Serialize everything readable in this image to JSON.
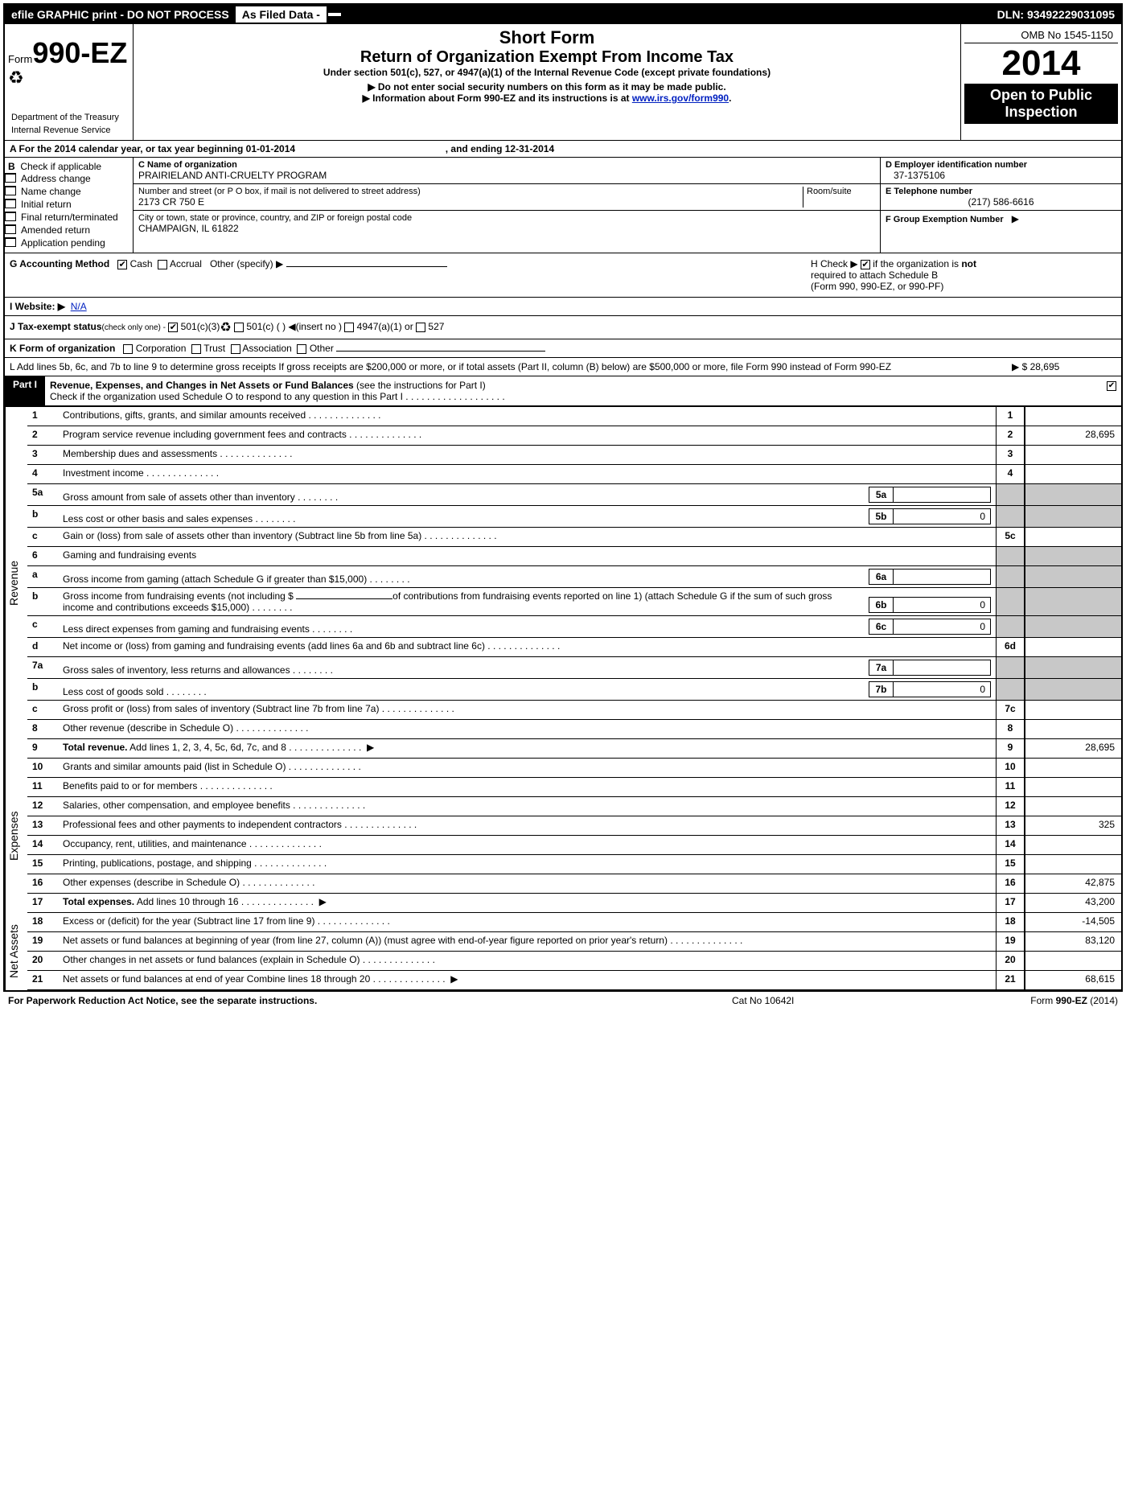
{
  "topbar": {
    "efile": "efile GRAPHIC print - DO NOT PROCESS",
    "asfiled": "As Filed Data -",
    "dln": "DLN: 93492229031095"
  },
  "header": {
    "formword": "Form",
    "formnum": "990-EZ",
    "dept1": "Department of the Treasury",
    "dept2": "Internal Revenue Service",
    "shortform": "Short Form",
    "retorg": "Return of Organization Exempt From Income Tax",
    "under": "Under section 501(c), 527, or 4947(a)(1) of the Internal Revenue Code (except private foundations)",
    "note1": "▶ Do not enter social security numbers on this form as it may be made public.",
    "note2a": "▶ Information about Form 990-EZ and its instructions is at ",
    "note2b": "www.irs.gov/form990",
    "note2c": ".",
    "omb": "OMB No  1545-1150",
    "year": "2014",
    "open1": "Open to Public",
    "open2": "Inspection"
  },
  "rowA": {
    "a": "A  For the 2014 calendar year, or tax year beginning 01-01-2014",
    "b": ", and ending 12-31-2014"
  },
  "B": {
    "label": "B",
    "check": "Check if applicable",
    "opts": [
      "Address change",
      "Name change",
      "Initial return",
      "Final return/terminated",
      "Amended return",
      "Application pending"
    ]
  },
  "C": {
    "namelabel": "C Name of organization",
    "name": "PRAIRIELAND ANTI-CRUELTY PROGRAM",
    "addrlabel": "Number and street (or P  O  box, if mail is not delivered to street address)",
    "roomlabel": "Room/suite",
    "addr": "2173 CR 750 E",
    "citylabel": "City or town, state or province, country, and ZIP or foreign postal code",
    "city": "CHAMPAIGN, IL  61822"
  },
  "D": {
    "label": "D Employer identification number",
    "val": "37-1375106"
  },
  "E": {
    "label": "E Telephone number",
    "val": "(217) 586-6616"
  },
  "F": {
    "label": "F Group Exemption Number",
    "arrow": "▶"
  },
  "G": {
    "label": "G Accounting Method",
    "cash": "Cash",
    "accr": "Accrual",
    "other": "Other (specify) ▶"
  },
  "H": {
    "text1": "H   Check ▶",
    "text2": "if the organization is ",
    "not": "not",
    "text3": "required to attach Schedule B",
    "text4": "(Form 990, 990-EZ, or 990-PF)"
  },
  "I": {
    "label": "I Website: ▶",
    "val": "N/A"
  },
  "J": {
    "label": "J Tax-exempt status",
    "sub": "(check only one) -",
    "a": "501(c)(3)",
    "b": "501(c) (   ) ◀(insert no )",
    "c": "4947(a)(1) or",
    "d": "527"
  },
  "K": {
    "label": "K Form of organization",
    "a": "Corporation",
    "b": "Trust",
    "c": "Association",
    "d": "Other"
  },
  "L": {
    "text": "L Add lines 5b, 6c, and 7b to line 9 to determine gross receipts  If gross receipts are $200,000 or more, or if total assets (Part II, column (B) below) are $500,000 or more, file Form 990 instead of Form 990-EZ",
    "arrow": "▶",
    "val": "$ 28,695"
  },
  "part1": {
    "tag": "Part I",
    "title": "Revenue, Expenses, and Changes in Net Assets or Fund Balances",
    "sub": "(see the instructions for Part I)",
    "check": "Check if the organization used Schedule O to respond to any question in this Part I"
  },
  "sections": {
    "rev": "Revenue",
    "exp": "Expenses",
    "net": "Net Assets"
  },
  "lines": {
    "1": {
      "n": "1",
      "d": "Contributions, gifts, grants, and similar amounts received",
      "b": "1",
      "v": ""
    },
    "2": {
      "n": "2",
      "d": "Program service revenue including government fees and contracts",
      "b": "2",
      "v": "28,695"
    },
    "3": {
      "n": "3",
      "d": "Membership dues and assessments",
      "b": "3",
      "v": ""
    },
    "4": {
      "n": "4",
      "d": "Investment income",
      "b": "4",
      "v": ""
    },
    "5a": {
      "n": "5a",
      "d": "Gross amount from sale of assets other than inventory",
      "ib": "5a",
      "iv": ""
    },
    "5b": {
      "n": "b",
      "d": "Less  cost or other basis and sales expenses",
      "ib": "5b",
      "iv": "0"
    },
    "5c": {
      "n": "c",
      "d": "Gain or (loss) from sale of assets other than inventory (Subtract line 5b from line 5a)",
      "b": "5c",
      "v": ""
    },
    "6": {
      "n": "6",
      "d": "Gaming and fundraising events"
    },
    "6a": {
      "n": "a",
      "d": "Gross income from gaming (attach Schedule G if greater than $15,000)",
      "ib": "6a",
      "iv": ""
    },
    "6b": {
      "n": "b",
      "d1": "Gross income from fundraising events (not including $ ",
      "d2": "of contributions from fundraising events reported on line 1) (attach Schedule G if the sum of such gross income and contributions exceeds $15,000)",
      "ib": "6b",
      "iv": "0"
    },
    "6c": {
      "n": "c",
      "d": "Less  direct expenses from gaming and fundraising events",
      "ib": "6c",
      "iv": "0"
    },
    "6d": {
      "n": "d",
      "d": "Net income or (loss) from gaming and fundraising events (add lines 6a and 6b and subtract line 6c)",
      "b": "6d",
      "v": ""
    },
    "7a": {
      "n": "7a",
      "d": "Gross sales of inventory, less returns and allowances",
      "ib": "7a",
      "iv": ""
    },
    "7b": {
      "n": "b",
      "d": "Less  cost of goods sold",
      "ib": "7b",
      "iv": "0"
    },
    "7c": {
      "n": "c",
      "d": "Gross profit or (loss) from sales of inventory (Subtract line 7b from line 7a)",
      "b": "7c",
      "v": ""
    },
    "8": {
      "n": "8",
      "d": "Other revenue (describe in Schedule O)",
      "b": "8",
      "v": ""
    },
    "9": {
      "n": "9",
      "d": "Total revenue.",
      "d2": " Add lines 1, 2, 3, 4, 5c, 6d, 7c, and 8",
      "b": "9",
      "v": "28,695",
      "arrow": true,
      "bold": true
    },
    "10": {
      "n": "10",
      "d": "Grants and similar amounts paid (list in Schedule O)",
      "b": "10",
      "v": ""
    },
    "11": {
      "n": "11",
      "d": "Benefits paid to or for members",
      "b": "11",
      "v": ""
    },
    "12": {
      "n": "12",
      "d": "Salaries, other compensation, and employee benefits",
      "b": "12",
      "v": ""
    },
    "13": {
      "n": "13",
      "d": "Professional fees and other payments to independent contractors",
      "b": "13",
      "v": "325"
    },
    "14": {
      "n": "14",
      "d": "Occupancy, rent, utilities, and maintenance",
      "b": "14",
      "v": ""
    },
    "15": {
      "n": "15",
      "d": "Printing, publications, postage, and shipping",
      "b": "15",
      "v": ""
    },
    "16": {
      "n": "16",
      "d": "Other expenses (describe in Schedule O)",
      "b": "16",
      "v": "42,875"
    },
    "17": {
      "n": "17",
      "d": "Total expenses.",
      "d2": " Add lines 10 through 16",
      "b": "17",
      "v": "43,200",
      "arrow": true,
      "bold": true
    },
    "18": {
      "n": "18",
      "d": "Excess or (deficit) for the year (Subtract line 17 from line 9)",
      "b": "18",
      "v": "-14,505"
    },
    "19": {
      "n": "19",
      "d": "Net assets or fund balances at beginning of year (from line 27, column (A)) (must agree with end-of-year figure reported on prior year's return)",
      "b": "19",
      "v": "83,120"
    },
    "20": {
      "n": "20",
      "d": "Other changes in net assets or fund balances (explain in Schedule O)",
      "b": "20",
      "v": ""
    },
    "21": {
      "n": "21",
      "d": "Net assets or fund balances at end of year Combine lines 18 through 20",
      "b": "21",
      "v": "68,615",
      "arrow": true
    }
  },
  "footer": {
    "l": "For Paperwork Reduction Act Notice, see the separate instructions.",
    "c": "Cat No  10642I",
    "r1": "Form ",
    "r2": "990-EZ",
    "r3": " (2014)"
  }
}
